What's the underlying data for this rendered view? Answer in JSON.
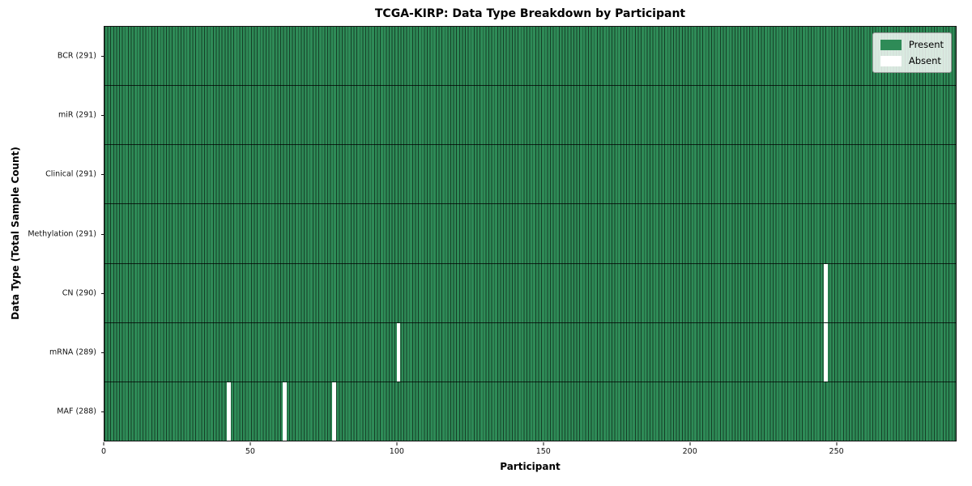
{
  "chart_data": {
    "type": "heatmap",
    "title": "TCGA-KIRP: Data Type Breakdown by Participant",
    "xlabel": "Participant",
    "ylabel": "Data Type (Total Sample Count)",
    "n_participants": 291,
    "x_range": [
      0,
      291
    ],
    "x_ticks": [
      0,
      50,
      100,
      150,
      200,
      250
    ],
    "grid": "off",
    "rows": [
      {
        "data_type": "BCR",
        "label": "BCR (291)",
        "present_count": 291,
        "absent_participants": []
      },
      {
        "data_type": "miR",
        "label": "miR (291)",
        "present_count": 291,
        "absent_participants": []
      },
      {
        "data_type": "Clinical",
        "label": "Clinical (291)",
        "present_count": 291,
        "absent_participants": []
      },
      {
        "data_type": "Methylation",
        "label": "Methylation (291)",
        "present_count": 291,
        "absent_participants": []
      },
      {
        "data_type": "CN",
        "label": "CN (290)",
        "present_count": 290,
        "absent_participants": [
          246
        ]
      },
      {
        "data_type": "mRNA",
        "label": "mRNA (289)",
        "present_count": 289,
        "absent_participants": [
          100,
          246
        ]
      },
      {
        "data_type": "MAF",
        "label": "MAF (288)",
        "present_count": 288,
        "absent_participants": [
          42,
          61,
          78
        ]
      }
    ],
    "legend": {
      "position": "upper right",
      "items": [
        {
          "label": "Present",
          "color": "#2e8b57"
        },
        {
          "label": "Absent",
          "color": "#ffffff"
        }
      ]
    },
    "colors": {
      "present": "#2e8b57",
      "absent": "#ffffff",
      "cell_edge": "rgba(0,0,0,0.55)",
      "row_divider": "rgba(0,0,0,0.75)",
      "spine": "#141414"
    }
  }
}
